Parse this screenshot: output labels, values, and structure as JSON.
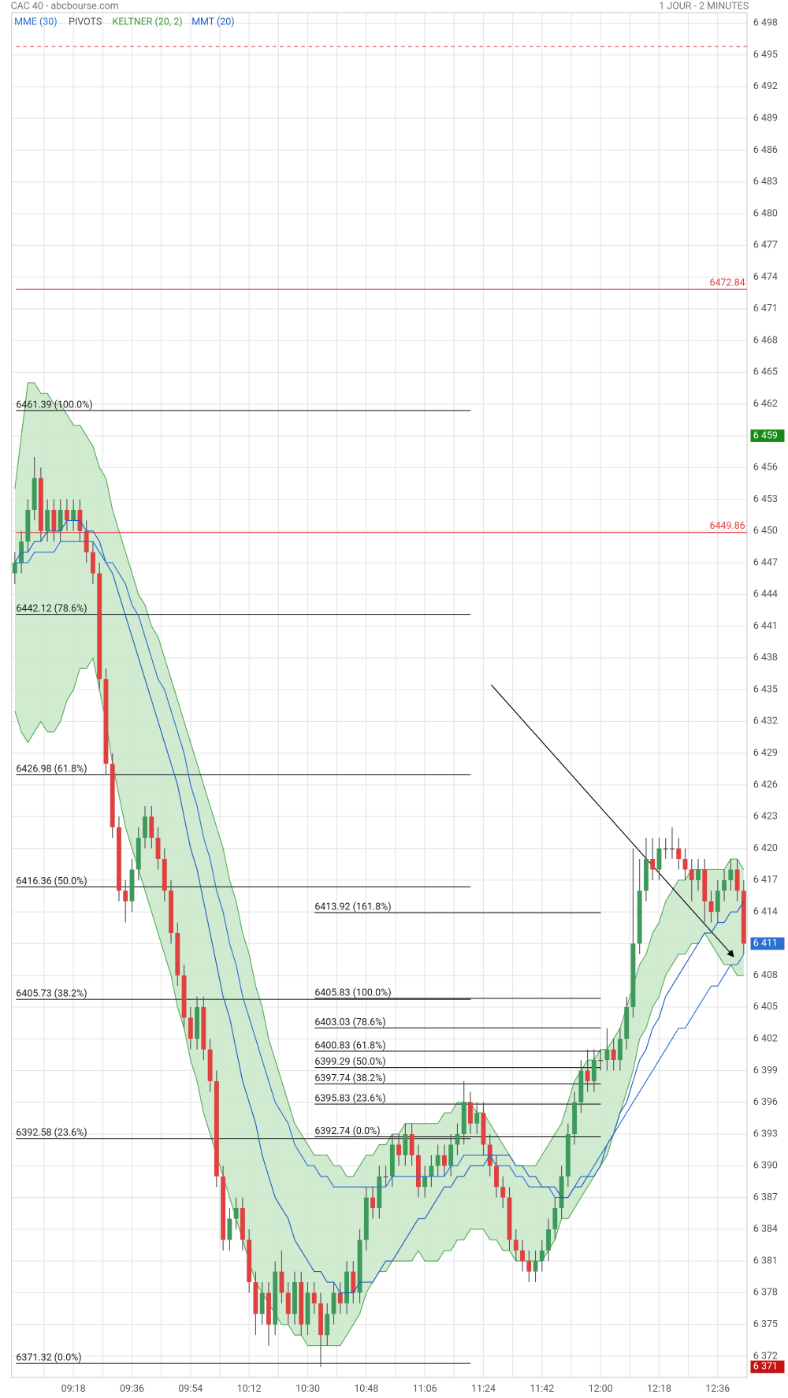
{
  "chart_data": {
    "type": "candlestick",
    "title": "CAC 40 - abcbourse.com",
    "subtitle": "1 JOUR - 2 MINUTES",
    "categories": [
      null,
      null,
      null,
      null,
      null,
      null,
      null,
      null,
      null,
      "09:18",
      null,
      null,
      null,
      null,
      null,
      null,
      null,
      null,
      "09:36",
      null,
      null,
      null,
      null,
      null,
      null,
      null,
      null,
      "09:54",
      null,
      null,
      null,
      null,
      null,
      null,
      null,
      null,
      "10:12",
      null,
      null,
      null,
      null,
      null,
      null,
      null,
      null,
      "10:30",
      null,
      null,
      null,
      null,
      null,
      null,
      null,
      null,
      "10:48",
      null,
      null,
      null,
      null,
      null,
      null,
      null,
      null,
      "11:06",
      null,
      null,
      null,
      null,
      null,
      null,
      null,
      null,
      "11:24",
      null,
      null,
      null,
      null,
      null,
      null,
      null,
      null,
      "11:42",
      null,
      null,
      null,
      null,
      null,
      null,
      null,
      null,
      "12:00",
      null,
      null,
      null,
      null,
      null,
      null,
      null,
      null,
      "12:18",
      null,
      null,
      null,
      null,
      null,
      null,
      null,
      null,
      "12:36",
      null,
      null,
      null,
      null
    ],
    "open": [
      6446,
      6447,
      6449,
      6452,
      6455,
      6450,
      6452,
      6450,
      6452,
      6451,
      6452,
      6450,
      6448,
      6446,
      6436,
      6428,
      6422,
      6416,
      6415,
      6418,
      6421,
      6423,
      6421,
      6419,
      6416,
      6412,
      6408,
      6404,
      6402,
      6405,
      6401,
      6398,
      6389,
      6383,
      6385,
      6386,
      6383,
      6379,
      6376,
      6378,
      6375,
      6380,
      6378,
      6376,
      6379,
      6375,
      6378,
      6377,
      6374,
      6376,
      6378,
      6377,
      6380,
      6378,
      6383,
      6387,
      6386,
      6389,
      6389,
      6392,
      6391,
      6393,
      6391,
      6388,
      6389,
      6390,
      6391,
      6390,
      6392,
      6393,
      6396,
      6394,
      6395,
      6392,
      6390,
      6388,
      6387,
      6383,
      6382,
      6381,
      6380,
      6381,
      6382,
      6384,
      6386,
      6389,
      6393,
      6396,
      6399,
      6398,
      6400,
      6400,
      6401,
      6400,
      6402,
      6405,
      6411,
      6416,
      6419,
      6418,
      6420,
      6420,
      6420,
      6419,
      6418,
      6417,
      6418,
      6415,
      6414,
      6416,
      6417,
      6418,
      6416
    ],
    "high": [
      6448,
      6450,
      6453,
      6457,
      6456,
      6453,
      6453,
      6453,
      6453,
      6453,
      6453,
      6451,
      6449,
      6447,
      6437,
      6429,
      6423,
      6417,
      6419,
      6422,
      6424,
      6424,
      6422,
      6420,
      6417,
      6413,
      6409,
      6405,
      6406,
      6406,
      6402,
      6399,
      6390,
      6386,
      6387,
      6387,
      6384,
      6380,
      6379,
      6379,
      6381,
      6382,
      6379,
      6380,
      6380,
      6379,
      6379,
      6378,
      6377,
      6379,
      6379,
      6381,
      6381,
      6384,
      6388,
      6388,
      6390,
      6390,
      6393,
      6393,
      6394,
      6394,
      6392,
      6390,
      6391,
      6392,
      6392,
      6393,
      6394,
      6398,
      6397,
      6396,
      6396,
      6393,
      6391,
      6389,
      6388,
      6384,
      6383,
      6382,
      6382,
      6383,
      6385,
      6387,
      6390,
      6394,
      6397,
      6400,
      6401,
      6401,
      6401,
      6403,
      6402,
      6403,
      6406,
      6420,
      6419,
      6421,
      6421,
      6421,
      6421,
      6422,
      6421,
      6420,
      6419,
      6419,
      6419,
      6416,
      6417,
      6418,
      6419,
      6419,
      6417
    ],
    "low": [
      6445,
      6446,
      6448,
      6451,
      6449,
      6449,
      6449,
      6449,
      6450,
      6450,
      6449,
      6447,
      6445,
      6435,
      6427,
      6421,
      6415,
      6413,
      6414,
      6417,
      6420,
      6420,
      6418,
      6415,
      6411,
      6407,
      6403,
      6401,
      6401,
      6400,
      6397,
      6388,
      6382,
      6382,
      6384,
      6382,
      6378,
      6374,
      6375,
      6373,
      6374,
      6377,
      6375,
      6375,
      6374,
      6374,
      6376,
      6371,
      6373,
      6375,
      6376,
      6376,
      6377,
      6377,
      6382,
      6385,
      6385,
      6388,
      6388,
      6390,
      6390,
      6390,
      6387,
      6387,
      6388,
      6389,
      6389,
      6389,
      6391,
      6392,
      6393,
      6393,
      6391,
      6389,
      6387,
      6386,
      6382,
      6381,
      6380,
      6379,
      6379,
      6380,
      6381,
      6383,
      6385,
      6388,
      6392,
      6395,
      6397,
      6397,
      6399,
      6399,
      6399,
      6399,
      6401,
      6404,
      6410,
      6415,
      6417,
      6417,
      6419,
      6419,
      6418,
      6417,
      6415,
      6416,
      6413,
      6413,
      6413,
      6415,
      6416,
      6415,
      6410
    ],
    "close": [
      6447,
      6449,
      6452,
      6455,
      6450,
      6452,
      6450,
      6452,
      6451,
      6452,
      6450,
      6448,
      6446,
      6436,
      6428,
      6422,
      6416,
      6415,
      6418,
      6421,
      6423,
      6421,
      6419,
      6416,
      6412,
      6408,
      6404,
      6402,
      6405,
      6401,
      6398,
      6389,
      6383,
      6385,
      6386,
      6383,
      6379,
      6376,
      6378,
      6375,
      6380,
      6378,
      6376,
      6379,
      6375,
      6378,
      6377,
      6374,
      6376,
      6378,
      6377,
      6380,
      6378,
      6383,
      6387,
      6386,
      6389,
      6389,
      6392,
      6391,
      6393,
      6391,
      6388,
      6389,
      6390,
      6391,
      6390,
      6392,
      6393,
      6396,
      6394,
      6395,
      6392,
      6390,
      6388,
      6387,
      6383,
      6382,
      6381,
      6380,
      6381,
      6382,
      6384,
      6386,
      6389,
      6393,
      6396,
      6399,
      6398,
      6400,
      6400,
      6401,
      6400,
      6402,
      6405,
      6411,
      6416,
      6419,
      6418,
      6420,
      6420,
      6420,
      6419,
      6418,
      6417,
      6418,
      6415,
      6414,
      6416,
      6417,
      6418,
      6416,
      6411
    ],
    "up_color": "#3d9a5c",
    "down_color": "#e0413f",
    "series": [
      {
        "name": "MME (30)",
        "color": "#2a6fd1",
        "values": [
          6447,
          6447,
          6447,
          6448,
          6448,
          6448,
          6448,
          6449,
          6449,
          6449,
          6449,
          6449,
          6449,
          6448,
          6447,
          6447,
          6446,
          6445,
          6443,
          6442,
          6440,
          6438,
          6436,
          6435,
          6433,
          6431,
          6429,
          6426,
          6424,
          6421,
          6419,
          6416,
          6414,
          6411,
          6409,
          6406,
          6404,
          6402,
          6400,
          6398,
          6396,
          6395,
          6394,
          6392,
          6391,
          6390,
          6390,
          6389,
          6389,
          6388,
          6388,
          6388,
          6388,
          6388,
          6388,
          6388,
          6388,
          6388,
          6389,
          6389,
          6389,
          6389,
          6389,
          6389,
          6389,
          6389,
          6389,
          6390,
          6390,
          6391,
          6391,
          6391,
          6391,
          6391,
          6390,
          6390,
          6390,
          6389,
          6389,
          6388,
          6388,
          6388,
          6388,
          6387,
          6387,
          6387,
          6388,
          6389,
          6389,
          6390,
          6391,
          6392,
          6393,
          6394,
          6395,
          6396,
          6397,
          6398,
          6399,
          6400,
          6401,
          6402,
          6403,
          6403,
          6404,
          6405,
          6406,
          6407,
          6407,
          6408,
          6409,
          6409,
          6410
        ]
      },
      {
        "name": "MMT (20)",
        "color": "#1f5fbf",
        "values": [
          6447,
          6448,
          6448,
          6449,
          6449,
          6450,
          6450,
          6450,
          6451,
          6451,
          6451,
          6450,
          6450,
          6449,
          6447,
          6446,
          6444,
          6442,
          6440,
          6438,
          6436,
          6434,
          6432,
          6430,
          6428,
          6426,
          6423,
          6420,
          6418,
          6415,
          6412,
          6409,
          6406,
          6404,
          6401,
          6398,
          6396,
          6394,
          6391,
          6389,
          6387,
          6386,
          6385,
          6383,
          6382,
          6381,
          6380,
          6380,
          6379,
          6379,
          6378,
          6378,
          6378,
          6379,
          6379,
          6379,
          6380,
          6381,
          6381,
          6382,
          6383,
          6384,
          6385,
          6385,
          6386,
          6387,
          6388,
          6388,
          6389,
          6389,
          6390,
          6390,
          6390,
          6391,
          6391,
          6391,
          6391,
          6390,
          6390,
          6389,
          6389,
          6388,
          6388,
          6388,
          6387,
          6387,
          6388,
          6388,
          6389,
          6389,
          6390,
          6392,
          6393,
          6395,
          6396,
          6398,
          6400,
          6401,
          6403,
          6404,
          6406,
          6407,
          6408,
          6409,
          6410,
          6411,
          6412,
          6412,
          6413,
          6413,
          6414,
          6414,
          6415
        ]
      }
    ],
    "keltner": {
      "name": "KELTNER (20, 2)",
      "color": "#5aab5a",
      "fill": "#c9e8c9",
      "upper": [
        6454,
        6459,
        6464,
        6464,
        6463,
        6463,
        6462,
        6462,
        6461,
        6460,
        6460,
        6459,
        6458,
        6456,
        6455,
        6452,
        6450,
        6448,
        6446,
        6444,
        6443,
        6441,
        6440,
        6438,
        6436,
        6434,
        6432,
        6430,
        6428,
        6426,
        6424,
        6422,
        6420,
        6417,
        6415,
        6412,
        6410,
        6407,
        6405,
        6402,
        6400,
        6398,
        6396,
        6394,
        6393,
        6392,
        6391,
        6391,
        6391,
        6390,
        6390,
        6389,
        6389,
        6390,
        6391,
        6391,
        6392,
        6392,
        6393,
        6393,
        6394,
        6394,
        6394,
        6394,
        6394,
        6394,
        6395,
        6395,
        6396,
        6396,
        6396,
        6395,
        6395,
        6394,
        6393,
        6392,
        6391,
        6390,
        6390,
        6390,
        6390,
        6391,
        6392,
        6393,
        6394,
        6396,
        6398,
        6399,
        6400,
        6400,
        6401,
        6401,
        6402,
        6403,
        6405,
        6407,
        6409,
        6410,
        6412,
        6413,
        6415,
        6416,
        6417,
        6417,
        6418,
        6418,
        6418,
        6418,
        6418,
        6418,
        6419,
        6419,
        6418
      ],
      "lower": [
        6433,
        6431,
        6430,
        6431,
        6432,
        6431,
        6431,
        6432,
        6434,
        6435,
        6437,
        6437,
        6438,
        6435,
        6432,
        6428,
        6425,
        6422,
        6420,
        6418,
        6416,
        6414,
        6412,
        6410,
        6408,
        6405,
        6403,
        6400,
        6398,
        6395,
        6393,
        6391,
        6389,
        6387,
        6385,
        6383,
        6381,
        6379,
        6378,
        6377,
        6376,
        6375,
        6375,
        6374,
        6374,
        6373,
        6373,
        6373,
        6373,
        6373,
        6373,
        6374,
        6375,
        6376,
        6378,
        6379,
        6380,
        6380,
        6381,
        6381,
        6381,
        6381,
        6382,
        6381,
        6381,
        6381,
        6382,
        6382,
        6383,
        6383,
        6384,
        6384,
        6384,
        6383,
        6383,
        6382,
        6382,
        6381,
        6381,
        6381,
        6381,
        6381,
        6382,
        6383,
        6385,
        6385,
        6386,
        6387,
        6388,
        6389,
        6390,
        6391,
        6393,
        6395,
        6397,
        6399,
        6402,
        6403,
        6405,
        6406,
        6408,
        6409,
        6410,
        6410,
        6411,
        6411,
        6412,
        6411,
        6410,
        6409,
        6409,
        6408,
        6408
      ]
    },
    "pivots": {
      "name": "PIVOTS",
      "color": "#e0413f",
      "levels": [
        6472.84,
        6449.86
      ],
      "dashed": 6495.8
    },
    "fibonacci": [
      {
        "levels": [
          {
            "value": 6461.39,
            "label": "6461.39  (100.0%)"
          },
          {
            "value": 6442.12,
            "label": "6442.12  (78.6%)"
          },
          {
            "value": 6426.98,
            "label": "6426.98  (61.8%)"
          },
          {
            "value": 6416.36,
            "label": "6416.36  (50.0%)"
          },
          {
            "value": 6405.73,
            "label": "6405.73  (38.2%)"
          },
          {
            "value": 6392.58,
            "label": "6392.58  (23.6%)"
          },
          {
            "value": 6371.32,
            "label": "6371.32  (0.0%)"
          }
        ]
      },
      {
        "levels": [
          {
            "value": 6413.92,
            "label": "6413.92  (161.8%)"
          },
          {
            "value": 6405.83,
            "label": "6405.83  (100.0%)"
          },
          {
            "value": 6403.03,
            "label": "6403.03  (78.6%)"
          },
          {
            "value": 6400.83,
            "label": "6400.83  (61.8%)"
          },
          {
            "value": 6399.29,
            "label": "6399.29  (50.0%)"
          },
          {
            "value": 6397.74,
            "label": "6397.74  (38.2%)"
          },
          {
            "value": 6395.83,
            "label": "6395.83  (23.6%)"
          },
          {
            "value": 6392.74,
            "label": "6392.74  (0.0%)"
          }
        ]
      }
    ],
    "price_badges": [
      {
        "value": 6459,
        "label": "6 459",
        "color": "#138a13"
      },
      {
        "value": 6411,
        "label": "6 411",
        "color": "#2a6fd1"
      },
      {
        "value": 6371,
        "label": "6 371",
        "color": "#c41212"
      }
    ],
    "ylim": [
      6370,
      6499
    ],
    "yticks": [
      {
        "value": 6498,
        "label": "6 498"
      },
      {
        "value": 6495,
        "label": "6 495"
      },
      {
        "value": 6492,
        "label": "6 492"
      },
      {
        "value": 6489,
        "label": "6 489"
      },
      {
        "value": 6486,
        "label": "6 486"
      },
      {
        "value": 6483,
        "label": "6 483"
      },
      {
        "value": 6480,
        "label": "6 480"
      },
      {
        "value": 6477,
        "label": "6 477"
      },
      {
        "value": 6474,
        "label": "6 474"
      },
      {
        "value": 6471,
        "label": "6 471"
      },
      {
        "value": 6468,
        "label": "6 468"
      },
      {
        "value": 6465,
        "label": "6 465"
      },
      {
        "value": 6462,
        "label": "6 462"
      },
      {
        "value": 6459,
        "label": "6 459"
      },
      {
        "value": 6456,
        "label": "6 456"
      },
      {
        "value": 6453,
        "label": "6 453"
      },
      {
        "value": 6450,
        "label": "6 450"
      },
      {
        "value": 6447,
        "label": "6 447"
      },
      {
        "value": 6444,
        "label": "6 444"
      },
      {
        "value": 6441,
        "label": "6 441"
      },
      {
        "value": 6438,
        "label": "6 438"
      },
      {
        "value": 6435,
        "label": "6 435"
      },
      {
        "value": 6432,
        "label": "6 432"
      },
      {
        "value": 6429,
        "label": "6 429"
      },
      {
        "value": 6426,
        "label": "6 426"
      },
      {
        "value": 6423,
        "label": "6 423"
      },
      {
        "value": 6420,
        "label": "6 420"
      },
      {
        "value": 6417,
        "label": "6 417"
      },
      {
        "value": 6414,
        "label": "6 414"
      },
      {
        "value": 6411,
        "label": "6 411"
      },
      {
        "value": 6408,
        "label": "6 408"
      },
      {
        "value": 6405,
        "label": "6 405"
      },
      {
        "value": 6402,
        "label": "6 402"
      },
      {
        "value": 6399,
        "label": "6 399"
      },
      {
        "value": 6396,
        "label": "6 396"
      },
      {
        "value": 6393,
        "label": "6 393"
      },
      {
        "value": 6390,
        "label": "6 390"
      },
      {
        "value": 6387,
        "label": "6 387"
      },
      {
        "value": 6384,
        "label": "6 384"
      },
      {
        "value": 6381,
        "label": "6 381"
      },
      {
        "value": 6378,
        "label": "6 378"
      },
      {
        "value": 6375,
        "label": "6 375"
      },
      {
        "value": 6372,
        "label": "6 372"
      }
    ],
    "grid": true
  }
}
